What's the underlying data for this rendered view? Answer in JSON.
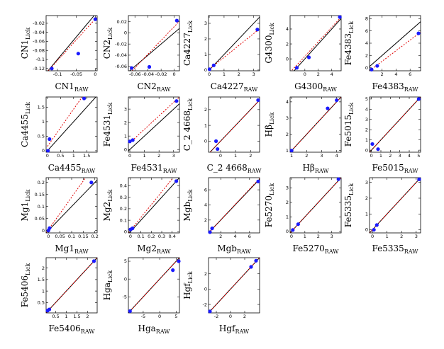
{
  "chart_data": [
    {
      "type": "scatter",
      "xlabel": "CN1",
      "xlabel_sub": "RAW",
      "ylabel": "CN1",
      "ylabel_sub": "Lick",
      "xlim": [
        -0.13,
        0.005
      ],
      "ylim": [
        -0.125,
        -0.003
      ],
      "xticks": [
        -0.1,
        -0.05,
        0
      ],
      "yticks": [
        -0.12,
        -0.1,
        -0.08,
        -0.06,
        -0.04,
        -0.02
      ],
      "points": [
        [
          -0.115,
          -0.12
        ],
        [
          -0.045,
          -0.087
        ],
        [
          0.0,
          -0.011
        ]
      ],
      "fit": [
        [
          -0.13,
          -0.13
        ],
        [
          0.005,
          -0.006
        ]
      ]
    },
    {
      "type": "scatter",
      "xlabel": "CN2",
      "xlabel_sub": "RAW",
      "ylabel": "CN2",
      "ylabel_sub": "Lick",
      "xlim": [
        -0.07,
        0.008
      ],
      "ylim": [
        -0.068,
        0.031
      ],
      "xticks": [
        -0.06,
        -0.04,
        -0.02,
        0
      ],
      "yticks": [
        -0.06,
        -0.04,
        -0.02,
        0,
        0.02
      ],
      "points": [
        [
          -0.065,
          -0.063
        ],
        [
          -0.038,
          -0.061
        ],
        [
          0.004,
          0.022
        ]
      ],
      "fit": [
        [
          -0.07,
          -0.075
        ],
        [
          0.008,
          0.021
        ]
      ]
    },
    {
      "type": "scatter",
      "xlabel": "Ca4227",
      "xlabel_sub": "RAW",
      "ylabel": "Ca4227",
      "ylabel_sub": "Lick",
      "xlim": [
        -0.05,
        3.4
      ],
      "ylim": [
        -0.05,
        3.5
      ],
      "xticks": [
        0,
        1,
        2,
        3
      ],
      "yticks": [
        0,
        1,
        2,
        3
      ],
      "points": [
        [
          0.02,
          0.05
        ],
        [
          0.3,
          0.3
        ],
        [
          3.25,
          2.6
        ]
      ],
      "fit": [
        [
          0,
          0.05
        ],
        [
          3.4,
          2.65
        ]
      ]
    },
    {
      "type": "scatter",
      "xlabel": "G4300",
      "xlabel_sub": "RAW",
      "ylabel": "G4300",
      "ylabel_sub": "Lick",
      "xlim": [
        -2.2,
        5.4
      ],
      "ylim": [
        -1.6,
        5.8
      ],
      "xticks": [
        0,
        2,
        4
      ],
      "yticks": [
        0,
        2,
        4
      ],
      "points": [
        [
          -1.2,
          -1.2
        ],
        [
          0.6,
          0.2
        ],
        [
          5.2,
          5.6
        ]
      ],
      "fit": [
        [
          -2.2,
          -1.8
        ],
        [
          5.4,
          5.6
        ]
      ]
    },
    {
      "type": "scatter",
      "xlabel": "Fe4383",
      "xlabel_sub": "RAW",
      "ylabel": "Fe4383",
      "ylabel_sub": "Lick",
      "xlim": [
        0.2,
        7.5
      ],
      "ylim": [
        -0.5,
        8.5
      ],
      "xticks": [
        2,
        4,
        6
      ],
      "yticks": [
        0,
        2,
        4,
        6,
        8
      ],
      "points": [
        [
          0.5,
          -0.3
        ],
        [
          1.3,
          0.3
        ],
        [
          7.2,
          5.6
        ]
      ],
      "fit": [
        [
          0.2,
          -0.5
        ],
        [
          7.5,
          5.8
        ]
      ]
    },
    {
      "type": "scatter",
      "xlabel": "Ca4455",
      "xlabel_sub": "RAW",
      "ylabel": "Ca4455",
      "ylabel_sub": "Lick",
      "xlim": [
        -0.05,
        1.9
      ],
      "ylim": [
        -0.05,
        1.85
      ],
      "xticks": [
        0,
        0.5,
        1,
        1.5
      ],
      "yticks": [
        0,
        0.5,
        1,
        1.5
      ],
      "points": [
        [
          0.02,
          0.0
        ],
        [
          0.08,
          0.4
        ],
        [
          1.4,
          1.8
        ]
      ],
      "fit": [
        [
          0,
          0.15
        ],
        [
          1.6,
          2.2
        ]
      ]
    },
    {
      "type": "scatter",
      "xlabel": "Fe4531",
      "xlabel_sub": "RAW",
      "ylabel": "Fe4531",
      "ylabel_sub": "Lick",
      "xlim": [
        -0.1,
        3.4
      ],
      "ylim": [
        -0.2,
        3.9
      ],
      "xticks": [
        0,
        1,
        2,
        3
      ],
      "yticks": [
        0,
        1,
        2,
        3
      ],
      "points": [
        [
          0.0,
          0.6
        ],
        [
          0.2,
          0.7
        ],
        [
          3.2,
          3.6
        ]
      ],
      "fit": [
        [
          0,
          0.5
        ],
        [
          3.4,
          3.9
        ]
      ]
    },
    {
      "type": "scatter",
      "xlabel": "C_2 4668",
      "xlabel_sub": "RAW",
      "ylabel": "C_2 4668",
      "ylabel_sub": "Lick",
      "xlim": [
        -0.8,
        2.6
      ],
      "ylim": [
        -0.7,
        2.8
      ],
      "xticks": [
        0,
        1,
        2
      ],
      "yticks": [
        0,
        1,
        2
      ],
      "points": [
        [
          -0.3,
          0.0
        ],
        [
          -0.2,
          -0.5
        ],
        [
          2.5,
          2.6
        ]
      ],
      "fit": [
        [
          -0.8,
          -0.8
        ],
        [
          2.6,
          2.6
        ]
      ]
    },
    {
      "type": "scatter",
      "xlabel": "Hβ",
      "xlabel_sub": "RAW",
      "ylabel": "Hβ",
      "ylabel_sub": "Lick",
      "xlim": [
        0.9,
        4.3
      ],
      "ylim": [
        0.9,
        4.3
      ],
      "xticks": [
        1,
        2,
        3,
        4
      ],
      "yticks": [
        1,
        2,
        3,
        4
      ],
      "points": [
        [
          1.0,
          1.0
        ],
        [
          3.4,
          3.6
        ],
        [
          4.0,
          4.1
        ]
      ],
      "fit": [
        [
          0.9,
          0.9
        ],
        [
          4.3,
          4.3
        ]
      ]
    },
    {
      "type": "scatter",
      "xlabel": "Fe5015",
      "xlabel_sub": "RAW",
      "ylabel": "Fe5015",
      "ylabel_sub": "Lick",
      "xlim": [
        -0.2,
        5.2
      ],
      "ylim": [
        -0.2,
        5.2
      ],
      "xticks": [
        0,
        1,
        2,
        3,
        4,
        5
      ],
      "yticks": [
        0,
        1,
        2,
        3,
        4,
        5
      ],
      "points": [
        [
          0.1,
          0.6
        ],
        [
          0.7,
          0.1
        ],
        [
          5.0,
          5.0
        ]
      ],
      "fit": [
        [
          -0.2,
          -0.2
        ],
        [
          5.2,
          5.2
        ]
      ]
    },
    {
      "type": "scatter",
      "xlabel": "Mg1",
      "xlabel_sub": "RAW",
      "ylabel": "Mg1",
      "ylabel_sub": "Lick",
      "xlim": [
        -0.01,
        0.21
      ],
      "ylim": [
        -0.01,
        0.22
      ],
      "xticks": [
        0,
        0.05,
        0.1,
        0.15,
        0.2
      ],
      "xticklabels": [
        "0",
        "0.05",
        "0.1",
        "0.15",
        "0.2"
      ],
      "yticks": [
        0,
        0.05,
        0.1,
        0.15,
        0.2
      ],
      "points": [
        [
          0.0,
          0.0
        ],
        [
          0.005,
          0.01
        ],
        [
          0.185,
          0.2
        ]
      ],
      "fit": [
        [
          -0.01,
          -0.01
        ],
        [
          0.16,
          0.22
        ]
      ]
    },
    {
      "type": "scatter",
      "xlabel": "Mg2",
      "xlabel_sub": "RAW",
      "ylabel": "Mg2",
      "ylabel_sub": "Lick",
      "xlim": [
        -0.02,
        0.47
      ],
      "ylim": [
        -0.01,
        0.47
      ],
      "xticks": [
        0,
        0.1,
        0.2,
        0.3,
        0.4
      ],
      "yticks": [
        0,
        0.1,
        0.2,
        0.3,
        0.4
      ],
      "points": [
        [
          0.0,
          0.02
        ],
        [
          0.02,
          0.03
        ],
        [
          0.44,
          0.44
        ]
      ],
      "fit": [
        [
          -0.02,
          -0.01
        ],
        [
          0.41,
          0.47
        ]
      ]
    },
    {
      "type": "scatter",
      "xlabel": "Mgb",
      "xlabel_sub": "RAW",
      "ylabel": "Mgb",
      "ylabel_sub": "Lick",
      "xlim": [
        0.3,
        7.4
      ],
      "ylim": [
        0.3,
        7.6
      ],
      "xticks": [
        2,
        4,
        6
      ],
      "yticks": [
        2,
        4,
        6
      ],
      "points": [
        [
          0.5,
          0.4
        ],
        [
          0.8,
          0.9
        ],
        [
          7.2,
          7.1
        ]
      ],
      "fit": [
        [
          0.3,
          0.3
        ],
        [
          7.4,
          7.5
        ]
      ]
    },
    {
      "type": "scatter",
      "xlabel": "Fe5270",
      "xlabel_sub": "RAW",
      "ylabel": "Fe5270",
      "ylabel_sub": "Lick",
      "xlim": [
        -0.1,
        3.7
      ],
      "ylim": [
        -0.1,
        3.7
      ],
      "xticks": [
        0,
        1,
        2,
        3
      ],
      "yticks": [
        0,
        1,
        2,
        3
      ],
      "points": [
        [
          0.1,
          0.1
        ],
        [
          0.5,
          0.5
        ],
        [
          3.5,
          3.6
        ]
      ],
      "fit": [
        [
          -0.1,
          -0.1
        ],
        [
          3.7,
          3.7
        ]
      ]
    },
    {
      "type": "scatter",
      "xlabel": "Fe5335",
      "xlabel_sub": "RAW",
      "ylabel": "Fe5335",
      "ylabel_sub": "Lick",
      "xlim": [
        -0.2,
        3.3
      ],
      "ylim": [
        -0.2,
        3.3
      ],
      "xticks": [
        0,
        1,
        2,
        3
      ],
      "yticks": [
        0,
        1,
        2,
        3
      ],
      "points": [
        [
          0.1,
          0.0
        ],
        [
          0.3,
          0.3
        ],
        [
          3.2,
          3.2
        ]
      ],
      "fit": [
        [
          -0.2,
          -0.2
        ],
        [
          3.3,
          3.3
        ]
      ]
    },
    {
      "type": "scatter",
      "xlabel": "Fe5406",
      "xlabel_sub": "RAW",
      "ylabel": "Fe5406",
      "ylabel_sub": "Lick",
      "xlim": [
        0.05,
        2.45
      ],
      "ylim": [
        0.05,
        2.45
      ],
      "xticks": [
        0.5,
        1,
        1.5,
        2
      ],
      "yticks": [
        0.5,
        1,
        1.5,
        2
      ],
      "points": [
        [
          0.12,
          0.15
        ],
        [
          0.2,
          0.2
        ],
        [
          2.3,
          2.3
        ]
      ],
      "fit": [
        [
          0.05,
          0.05
        ],
        [
          2.45,
          2.45
        ]
      ]
    },
    {
      "type": "scatter",
      "xlabel": "Hga",
      "xlabel_sub": "RAW",
      "ylabel": "Hga",
      "ylabel_sub": "Lick",
      "xlim": [
        -9.5,
        6.0
      ],
      "ylim": [
        -9.5,
        6.0
      ],
      "xticks": [
        -5,
        0,
        5
      ],
      "yticks": [
        -5,
        0,
        5
      ],
      "points": [
        [
          -9.0,
          -9.0
        ],
        [
          4.0,
          2.5
        ],
        [
          5.8,
          5.0
        ]
      ],
      "fit": [
        [
          -9.5,
          -9.5
        ],
        [
          6.0,
          6.0
        ]
      ]
    },
    {
      "type": "scatter",
      "xlabel": "Hgf",
      "xlabel_sub": "RAW",
      "ylabel": "Hgf",
      "ylabel_sub": "Lick",
      "xlim": [
        -3.1,
        4.1
      ],
      "ylim": [
        -3.1,
        4.1
      ],
      "xticks": [
        -2,
        0,
        2
      ],
      "yticks": [
        -2,
        0,
        2
      ],
      "points": [
        [
          -2.9,
          -2.9
        ],
        [
          2.9,
          2.9
        ],
        [
          3.6,
          3.7
        ]
      ],
      "fit": [
        [
          -3.1,
          -3.1
        ],
        [
          4.1,
          4.1
        ]
      ]
    }
  ],
  "colors": {
    "points": "#1a1aff",
    "identity": "#000000",
    "fit": "#e00000"
  }
}
